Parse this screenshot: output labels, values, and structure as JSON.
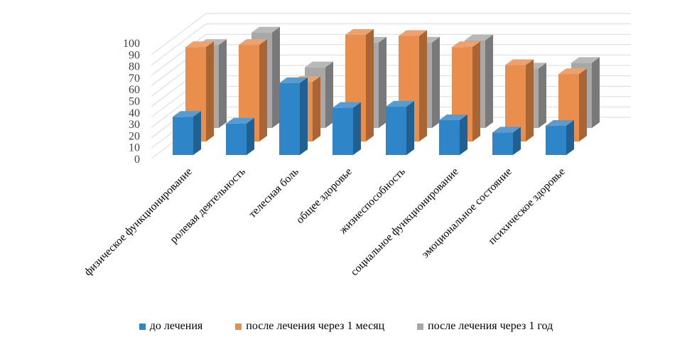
{
  "chart_data": {
    "type": "bar",
    "categories": [
      "физическое функционирование",
      "ролевая деятельность",
      "телесная боль",
      "общее здоровье",
      "жизнеспособность",
      "социальное функционирование",
      "эмоциональное состояние",
      "психическое здоровье"
    ],
    "series": [
      {
        "name": "до лечения",
        "values": [
          34,
          28,
          64,
          42,
          43,
          31,
          20,
          26
        ],
        "color": "#2E86C8"
      },
      {
        "name": "после лечения через 1 месяц",
        "values": [
          84,
          86,
          53,
          95,
          94,
          84,
          68,
          60
        ],
        "color": "#E98E4D"
      },
      {
        "name": "после лечения через 1 год",
        "values": [
          74,
          85,
          54,
          76,
          76,
          78,
          53,
          58
        ],
        "color": "#A8A8A8"
      }
    ],
    "yticks": [
      0,
      10,
      20,
      30,
      40,
      50,
      60,
      70,
      80,
      90,
      100
    ],
    "ylim": [
      0,
      100
    ],
    "title": "",
    "xlabel": "",
    "ylabel": "",
    "grid": true,
    "legend_position": "bottom",
    "style": "3d-column"
  }
}
